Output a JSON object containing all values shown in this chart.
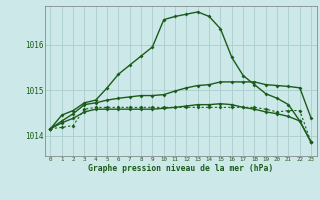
{
  "title": "Graphe pression niveau de la mer (hPa)",
  "bg_color": "#cde8e8",
  "grid_color": "#aacccc",
  "line_color": "#1a5c1a",
  "x_ticks": [
    0,
    1,
    2,
    3,
    4,
    5,
    6,
    7,
    8,
    9,
    10,
    11,
    12,
    13,
    14,
    15,
    16,
    17,
    18,
    19,
    20,
    21,
    22,
    23
  ],
  "y_ticks": [
    1014,
    1015,
    1016
  ],
  "ylim": [
    1013.55,
    1016.85
  ],
  "xlim": [
    -0.5,
    23.5
  ],
  "line1": [
    1014.15,
    1014.45,
    1014.55,
    1014.72,
    1014.78,
    1015.05,
    1015.35,
    1015.55,
    1015.75,
    1015.95,
    1016.55,
    1016.62,
    1016.67,
    1016.72,
    1016.62,
    1016.35,
    1015.72,
    1015.32,
    1015.12,
    1014.92,
    1014.82,
    1014.68,
    1014.32,
    1013.85
  ],
  "line2": [
    1014.15,
    1014.32,
    1014.48,
    1014.68,
    1014.72,
    1014.78,
    1014.82,
    1014.85,
    1014.88,
    1014.88,
    1014.9,
    1014.98,
    1015.05,
    1015.1,
    1015.12,
    1015.18,
    1015.18,
    1015.18,
    1015.18,
    1015.12,
    1015.1,
    1015.08,
    1015.05,
    1014.38
  ],
  "line3": [
    1014.15,
    1014.28,
    1014.38,
    1014.52,
    1014.58,
    1014.58,
    1014.58,
    1014.58,
    1014.58,
    1014.58,
    1014.6,
    1014.62,
    1014.65,
    1014.68,
    1014.68,
    1014.7,
    1014.68,
    1014.62,
    1014.58,
    1014.52,
    1014.48,
    1014.42,
    1014.32,
    1013.85
  ],
  "line4": [
    1014.15,
    1014.18,
    1014.22,
    1014.58,
    1014.62,
    1014.62,
    1014.62,
    1014.62,
    1014.62,
    1014.62,
    1014.62,
    1014.62,
    1014.62,
    1014.62,
    1014.62,
    1014.62,
    1014.62,
    1014.62,
    1014.62,
    1014.58,
    1014.52,
    1014.55,
    1014.55,
    1013.85
  ]
}
